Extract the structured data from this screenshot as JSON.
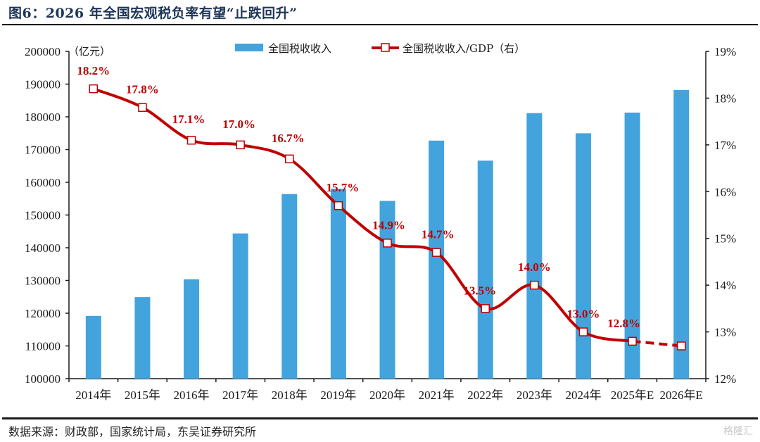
{
  "header": {
    "title": "图6：2026 年全国宏观税负率有望“止跌回升”"
  },
  "footer": {
    "source": "数据来源：财政部，国家统计局，东吴证券研究所",
    "watermark": "格隆汇"
  },
  "colors": {
    "bar": "#43a3dc",
    "line": "#c00000",
    "axis": "#1a1a1a"
  },
  "chart_data": {
    "type": "bar",
    "title": "2026 年全国宏观税负率有望“止跌回升”",
    "categories": [
      "2014年",
      "2015年",
      "2016年",
      "2017年",
      "2018年",
      "2019年",
      "2020年",
      "2021年",
      "2022年",
      "2023年",
      "2024年",
      "2025年E",
      "2026年E"
    ],
    "left_axis": {
      "unit_label": "（亿元）",
      "ylim": [
        100000,
        200000
      ],
      "ticks": [
        100000,
        110000,
        120000,
        130000,
        140000,
        150000,
        160000,
        170000,
        180000,
        190000,
        200000
      ]
    },
    "right_axis": {
      "ylim": [
        12,
        19
      ],
      "ticks": [
        "12%",
        "13%",
        "14%",
        "15%",
        "16%",
        "17%",
        "18%",
        "19%"
      ],
      "tick_values": [
        12,
        13,
        14,
        15,
        16,
        17,
        18,
        19
      ]
    },
    "series": [
      {
        "name": "全国税收收入",
        "type": "bar",
        "axis": "left",
        "values": [
          119175,
          124922,
          130361,
          144370,
          156402,
          158000,
          154312,
          172731,
          166614,
          181137,
          174972,
          181300,
          188200
        ]
      },
      {
        "name": "全国税收收入/GDP（右）",
        "type": "line",
        "axis": "right",
        "values": [
          18.2,
          17.8,
          17.1,
          17.0,
          16.7,
          15.7,
          14.9,
          14.7,
          13.5,
          14.0,
          13.0,
          12.8,
          12.7
        ],
        "labels": [
          "18.2%",
          "17.8%",
          "17.1%",
          "17.0%",
          "16.7%",
          "15.7%",
          "14.9%",
          "14.7%",
          "13.5%",
          "14.0%",
          "13.0%",
          "12.8%",
          ""
        ],
        "dashed_from_index": 11
      }
    ],
    "legend": {
      "placement": "top-center",
      "entries": [
        "全国税收收入",
        "全国税收收入/GDP（右）"
      ]
    },
    "grid": false
  }
}
